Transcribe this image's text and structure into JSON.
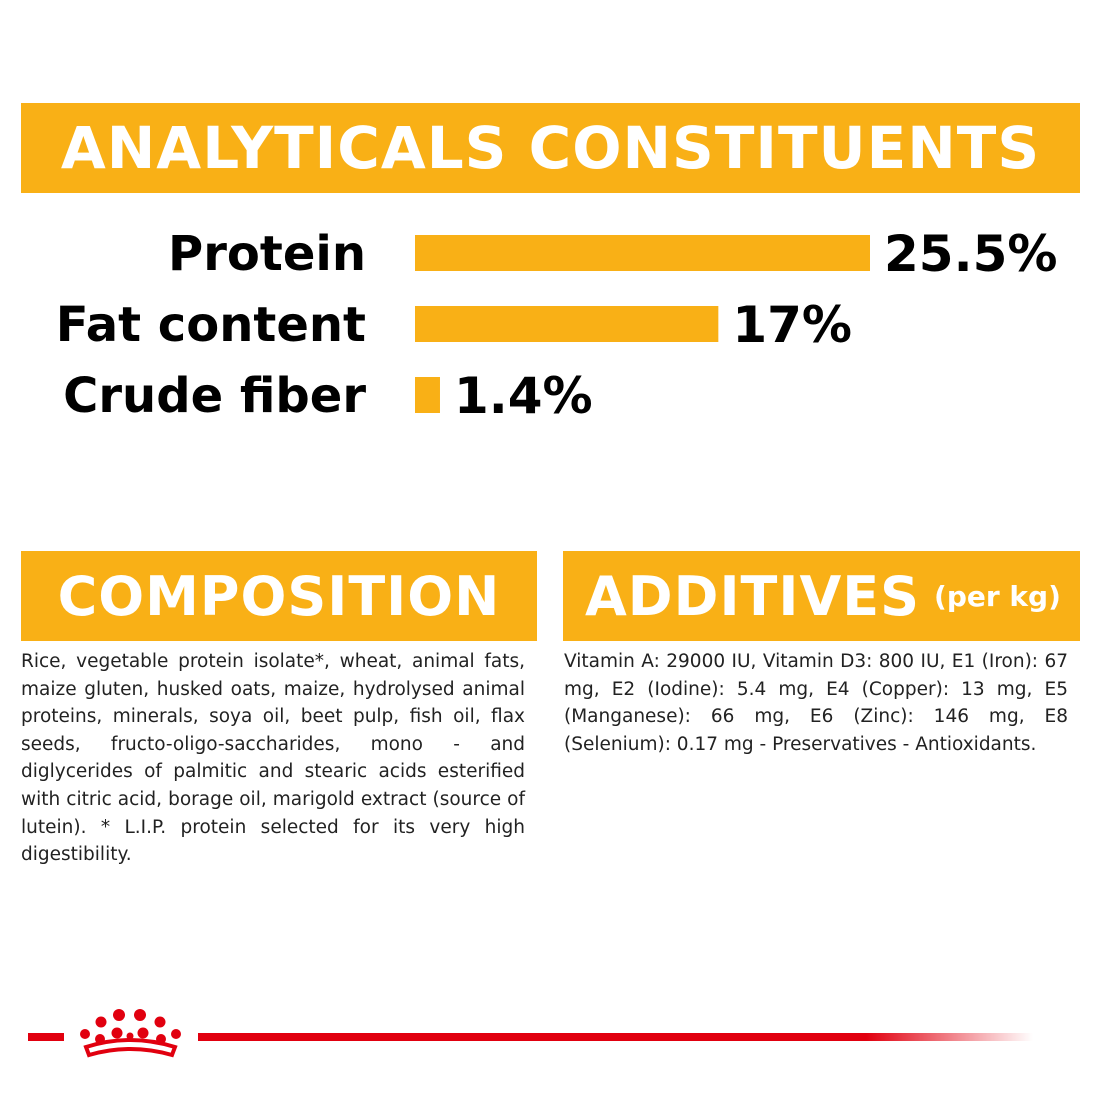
{
  "analytical": {
    "title": "ANALYTICALS CONSTITUENTS"
  },
  "chart_data": {
    "type": "bar",
    "orientation": "horizontal",
    "categories": [
      "Protein",
      "Fat content",
      "Crude fiber"
    ],
    "values": [
      25.5,
      17,
      1.4
    ],
    "value_labels": [
      "25.5%",
      "17%",
      "1.4%"
    ],
    "unit": "%",
    "xlim": [
      0,
      25.5
    ],
    "bar_color": "#F9B016",
    "grid": false,
    "legend": "none"
  },
  "composition": {
    "title": "COMPOSITION",
    "text": "Rice, vegetable protein isolate*, wheat, animal fats, maize gluten, husked oats, maize, hydrolysed animal proteins, minerals, soya oil, beet pulp, fish oil, flax seeds, fructo-oligo-saccharides, mono - and diglycerides of palmitic and stearic acids esterified with citric acid, borage oil, marigold extract (source of lutein). * L.I.P. protein selected for its very high digestibility."
  },
  "additives": {
    "title": "ADDITIVES",
    "subtitle": "(per kg)",
    "text": "Vitamin A: 29000 IU, Vitamin D3: 800 IU, E1 (Iron): 67 mg, E2 (Iodine): 5.4 mg, E4 (Copper): 13 mg, E5 (Manganese): 66 mg, E6 (Zinc): 146 mg, E8 (Selenium): 0.17 mg - Preservatives - Antioxidants."
  },
  "colors": {
    "accent": "#F9B016",
    "brand_red": "#E1000F"
  },
  "footer": {
    "logo_icon": "royal-crown-icon"
  }
}
